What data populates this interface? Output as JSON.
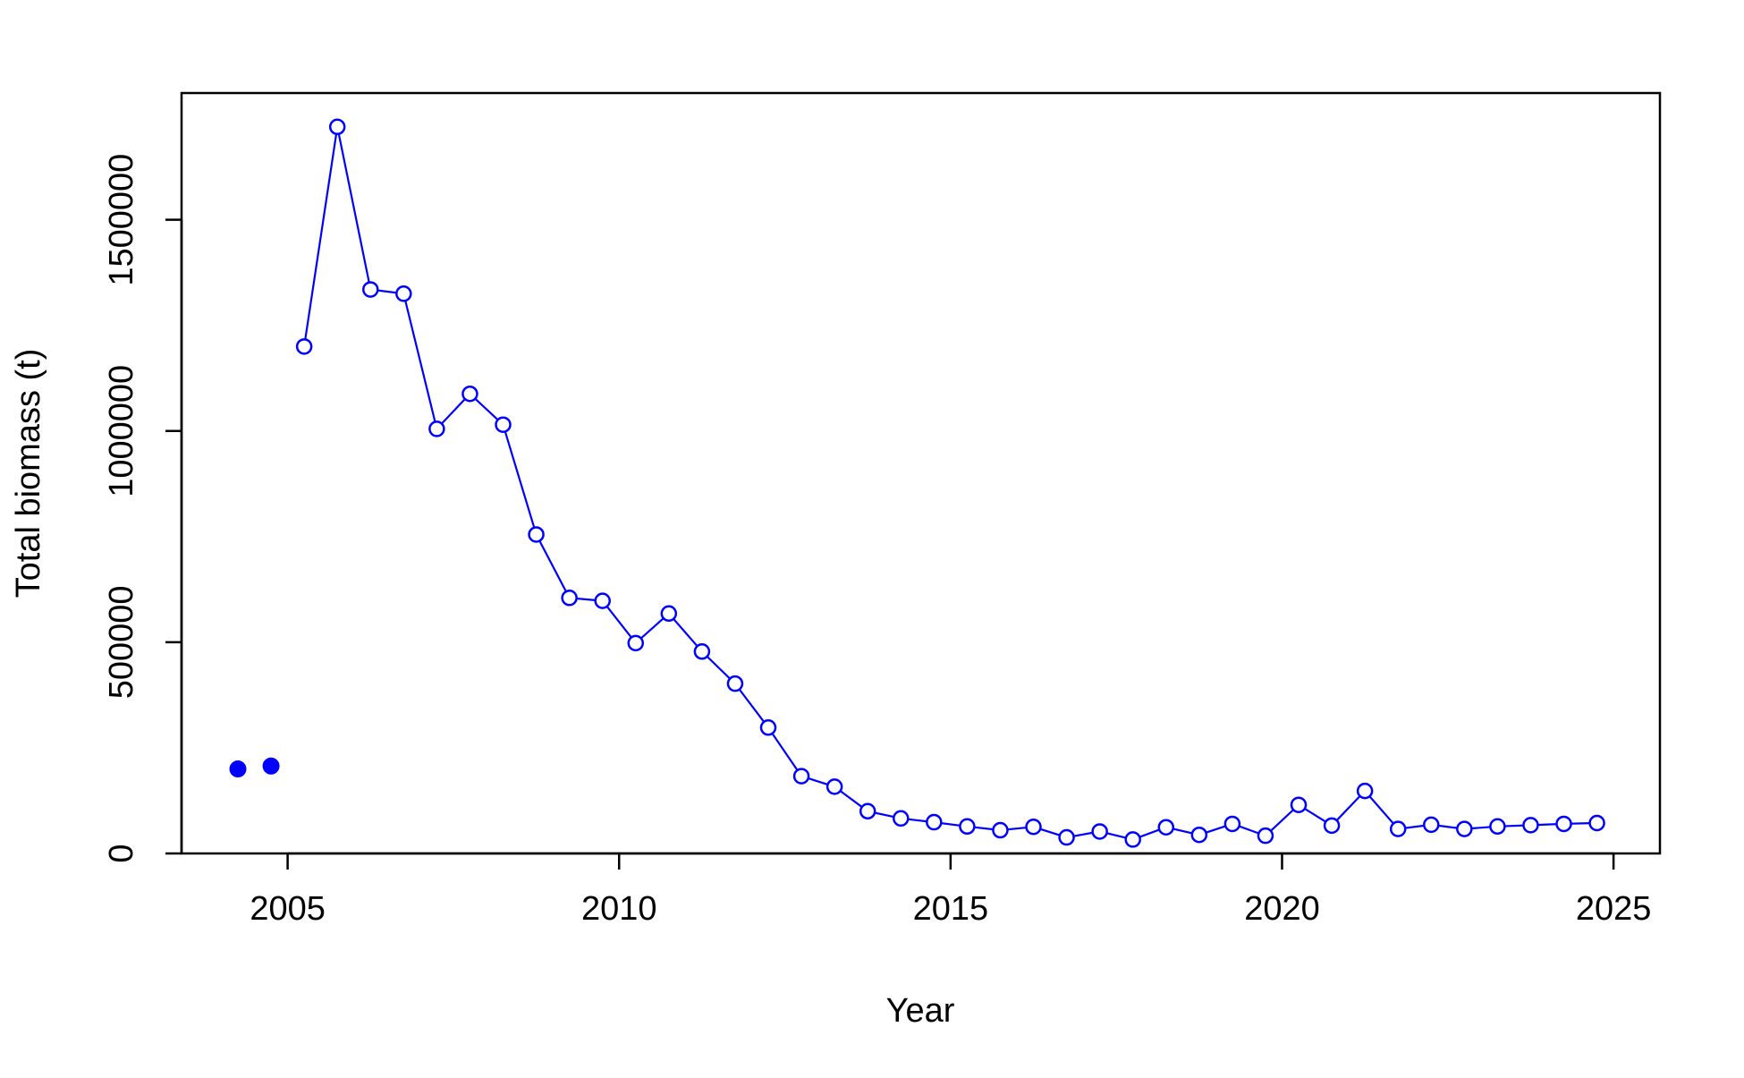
{
  "chart_data": {
    "type": "line",
    "title": "",
    "xlabel": "Year",
    "ylabel": "Total biomass (t)",
    "xlim": [
      2003.4,
      2025.7
    ],
    "ylim": [
      0,
      1800000
    ],
    "xticks": [
      2005,
      2010,
      2015,
      2020,
      2025
    ],
    "xtick_labels": [
      "2005",
      "2010",
      "2015",
      "2020",
      "2025"
    ],
    "yticks": [
      0,
      500000,
      1000000,
      1500000
    ],
    "ytick_labels": [
      "0",
      "500000",
      "1000000",
      "1500000"
    ],
    "grid": false,
    "legend": "none",
    "colors": {
      "series": "#0000ff",
      "axis": "#000000"
    },
    "series": [
      {
        "marker": "open-circle",
        "line": true,
        "points": [
          {
            "x": 2005.25,
            "y": 1200000
          },
          {
            "x": 2005.75,
            "y": 1720000
          },
          {
            "x": 2006.25,
            "y": 1335000
          },
          {
            "x": 2006.75,
            "y": 1325000
          },
          {
            "x": 2007.25,
            "y": 1005000
          },
          {
            "x": 2007.75,
            "y": 1088000
          },
          {
            "x": 2008.25,
            "y": 1015000
          },
          {
            "x": 2008.75,
            "y": 755000
          },
          {
            "x": 2009.25,
            "y": 605000
          },
          {
            "x": 2009.75,
            "y": 598000
          },
          {
            "x": 2010.25,
            "y": 498000
          },
          {
            "x": 2010.75,
            "y": 568000
          },
          {
            "x": 2011.25,
            "y": 478000
          },
          {
            "x": 2011.75,
            "y": 402000
          },
          {
            "x": 2012.25,
            "y": 298000
          },
          {
            "x": 2012.75,
            "y": 183000
          },
          {
            "x": 2013.25,
            "y": 158000
          },
          {
            "x": 2013.75,
            "y": 100000
          },
          {
            "x": 2014.25,
            "y": 83000
          },
          {
            "x": 2014.75,
            "y": 74000
          },
          {
            "x": 2015.25,
            "y": 64000
          },
          {
            "x": 2015.75,
            "y": 55000
          },
          {
            "x": 2016.25,
            "y": 63000
          },
          {
            "x": 2016.75,
            "y": 38000
          },
          {
            "x": 2017.25,
            "y": 52000
          },
          {
            "x": 2017.75,
            "y": 33000
          },
          {
            "x": 2018.25,
            "y": 62000
          },
          {
            "x": 2018.75,
            "y": 44000
          },
          {
            "x": 2019.25,
            "y": 70000
          },
          {
            "x": 2019.75,
            "y": 42000
          },
          {
            "x": 2020.25,
            "y": 115000
          },
          {
            "x": 2020.75,
            "y": 66000
          },
          {
            "x": 2021.25,
            "y": 148000
          },
          {
            "x": 2021.75,
            "y": 58000
          },
          {
            "x": 2022.25,
            "y": 68000
          },
          {
            "x": 2022.75,
            "y": 58000
          },
          {
            "x": 2023.25,
            "y": 64000
          },
          {
            "x": 2023.75,
            "y": 67000
          },
          {
            "x": 2024.25,
            "y": 70000
          },
          {
            "x": 2024.75,
            "y": 72000
          }
        ]
      },
      {
        "marker": "filled-circle",
        "line": false,
        "points": [
          {
            "x": 2004.25,
            "y": 200000
          },
          {
            "x": 2004.75,
            "y": 207000
          }
        ]
      }
    ]
  }
}
